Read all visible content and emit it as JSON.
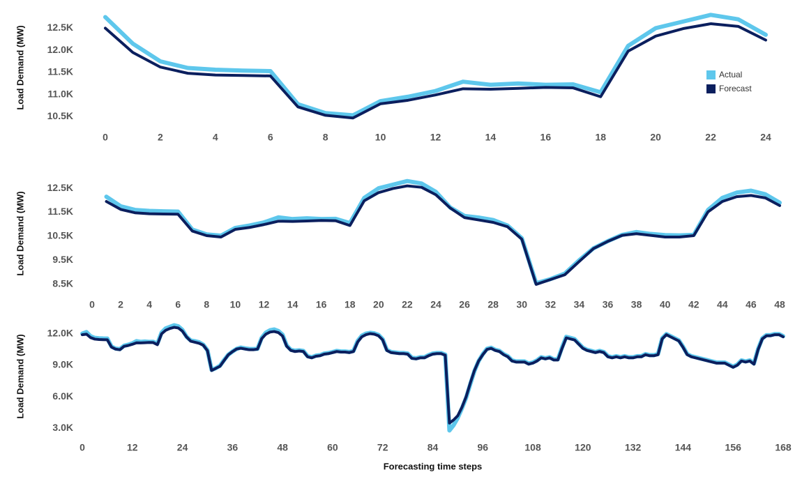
{
  "chart_data": [
    {
      "type": "line",
      "ylabel": "Load Demand (MW)",
      "legend": "right",
      "x": [
        0,
        1,
        2,
        3,
        4,
        5,
        6,
        7,
        8,
        9,
        10,
        11,
        12,
        13,
        14,
        15,
        16,
        17,
        18,
        19,
        20,
        21,
        22,
        23,
        24
      ],
      "series": [
        {
          "name": "Actual",
          "color": "#5ec7ec",
          "values": [
            12750,
            12150,
            11750,
            11600,
            11560,
            11540,
            11530,
            10780,
            10580,
            10530,
            10850,
            10950,
            11080,
            11290,
            11220,
            11250,
            11220,
            11230,
            11050,
            12100,
            12500,
            12650,
            12800,
            12700,
            12350
          ]
        },
        {
          "name": "Forecast",
          "color": "#0b1f5e",
          "values": [
            12500,
            11950,
            11620,
            11480,
            11440,
            11430,
            11420,
            10720,
            10530,
            10470,
            10790,
            10870,
            10990,
            11130,
            11120,
            11140,
            11160,
            11150,
            10950,
            11980,
            12320,
            12490,
            12600,
            12540,
            12230
          ]
        }
      ],
      "xlim": [
        0,
        24
      ],
      "xticks": [
        0,
        2,
        4,
        6,
        8,
        10,
        12,
        14,
        16,
        18,
        20,
        22,
        24
      ],
      "ylim": [
        10300,
        12900
      ],
      "yticks": [
        {
          "value": 12500,
          "label": "12.5K"
        },
        {
          "value": 12000,
          "label": "12.0K"
        },
        {
          "value": 11500,
          "label": "11.5K"
        },
        {
          "value": 11000,
          "label": "11.0K"
        },
        {
          "value": 10500,
          "label": "10.5K"
        }
      ]
    },
    {
      "type": "line",
      "ylabel": "Load Demand (MW)",
      "x": [
        1,
        2,
        3,
        4,
        5,
        6,
        7,
        8,
        9,
        10,
        11,
        12,
        13,
        14,
        15,
        16,
        17,
        18,
        19,
        20,
        21,
        22,
        23,
        24,
        25,
        26,
        27,
        28,
        29,
        30,
        31,
        32,
        33,
        34,
        35,
        36,
        37,
        38,
        39,
        40,
        41,
        42,
        43,
        44,
        45,
        46,
        47,
        48
      ],
      "series": [
        {
          "name": "Actual",
          "color": "#5ec7ec",
          "values": [
            12150,
            11750,
            11600,
            11560,
            11540,
            11530,
            10780,
            10580,
            10530,
            10850,
            10950,
            11080,
            11290,
            11220,
            11250,
            11220,
            11230,
            11050,
            12100,
            12500,
            12650,
            12800,
            12700,
            12350,
            11700,
            11350,
            11280,
            11180,
            10950,
            10420,
            8550,
            8720,
            8950,
            9500,
            10000,
            10300,
            10560,
            10680,
            10600,
            10550,
            10540,
            10560,
            11600,
            12100,
            12320,
            12400,
            12250,
            11900
          ]
        },
        {
          "name": "Forecast",
          "color": "#0b1f5e",
          "values": [
            11950,
            11620,
            11480,
            11440,
            11430,
            11420,
            10720,
            10530,
            10470,
            10790,
            10870,
            10990,
            11130,
            11120,
            11140,
            11160,
            11150,
            10950,
            11980,
            12320,
            12490,
            12600,
            12540,
            12230,
            11680,
            11280,
            11180,
            11080,
            10900,
            10380,
            8500,
            8700,
            8900,
            9450,
            9990,
            10290,
            10540,
            10610,
            10540,
            10470,
            10470,
            10530,
            11520,
            11950,
            12150,
            12200,
            12100,
            11780
          ]
        }
      ],
      "xlim": [
        0,
        48
      ],
      "xticks": [
        0,
        2,
        4,
        6,
        8,
        10,
        12,
        14,
        16,
        18,
        20,
        22,
        24,
        26,
        28,
        30,
        32,
        34,
        36,
        38,
        40,
        42,
        44,
        46,
        48
      ],
      "ylim": [
        8150,
        12850
      ],
      "yticks": [
        {
          "value": 12500,
          "label": "12.5K"
        },
        {
          "value": 11500,
          "label": "11.5K"
        },
        {
          "value": 10500,
          "label": "10.5K"
        },
        {
          "value": 9500,
          "label": "9.5K"
        },
        {
          "value": 8500,
          "label": "8.5K"
        }
      ]
    },
    {
      "type": "line",
      "ylabel": "Load Demand (MW)",
      "xlabel": "Forecasting time steps",
      "x": [
        0,
        1,
        2,
        3,
        4,
        5,
        6,
        7,
        8,
        9,
        10,
        11,
        12,
        13,
        14,
        15,
        16,
        17,
        18,
        19,
        20,
        21,
        22,
        23,
        24,
        25,
        26,
        27,
        28,
        29,
        30,
        31,
        32,
        33,
        34,
        35,
        36,
        37,
        38,
        39,
        40,
        41,
        42,
        43,
        44,
        45,
        46,
        47,
        48,
        49,
        50,
        51,
        52,
        53,
        54,
        55,
        56,
        57,
        58,
        59,
        60,
        61,
        62,
        63,
        64,
        65,
        66,
        67,
        68,
        69,
        70,
        71,
        72,
        73,
        74,
        75,
        76,
        77,
        78,
        79,
        80,
        81,
        82,
        83,
        84,
        85,
        86,
        87,
        88,
        89,
        90,
        91,
        92,
        93,
        94,
        95,
        96,
        97,
        98,
        99,
        100,
        101,
        102,
        103,
        104,
        105,
        106,
        107,
        108,
        109,
        110,
        111,
        112,
        113,
        114,
        115,
        116,
        117,
        118,
        119,
        120,
        121,
        122,
        123,
        124,
        125,
        126,
        127,
        128,
        129,
        130,
        131,
        132,
        133,
        134,
        135,
        136,
        137,
        138,
        139,
        140,
        141,
        142,
        143,
        144,
        145,
        146,
        147,
        148,
        149,
        150,
        151,
        152,
        153,
        154,
        155,
        156,
        157,
        158,
        159,
        160,
        161,
        162,
        163,
        164,
        165,
        166,
        167,
        168
      ],
      "series": [
        {
          "name": "Actual",
          "color": "#5ec7ec",
          "values": [
            12000,
            12150,
            11750,
            11600,
            11560,
            11540,
            11530,
            10780,
            10580,
            10530,
            10850,
            10950,
            11080,
            11290,
            11220,
            11250,
            11220,
            11230,
            11050,
            12100,
            12500,
            12650,
            12800,
            12700,
            12350,
            11700,
            11350,
            11280,
            11180,
            10950,
            10420,
            8550,
            8720,
            8950,
            9500,
            10000,
            10300,
            10560,
            10680,
            10600,
            10550,
            10540,
            10560,
            11600,
            12100,
            12320,
            12400,
            12250,
            11900,
            10870,
            10460,
            10380,
            10420,
            10360,
            9860,
            9760,
            9910,
            9960,
            10110,
            10160,
            10260,
            10360,
            10310,
            10310,
            10260,
            10360,
            11300,
            11800,
            12000,
            12080,
            12030,
            11880,
            11480,
            10460,
            10260,
            10210,
            10160,
            10160,
            10110,
            9710,
            9660,
            9760,
            9760,
            9960,
            10110,
            10160,
            10160,
            10010,
            2800,
            3300,
            4000,
            4900,
            5900,
            7200,
            8450,
            9400,
            10050,
            10560,
            10660,
            10460,
            10360,
            10060,
            9860,
            9460,
            9360,
            9360,
            9360,
            9160,
            9260,
            9460,
            9760,
            9660,
            9760,
            9560,
            9560,
            10700,
            11700,
            11600,
            11480,
            11060,
            10660,
            10460,
            10360,
            10260,
            10360,
            10260,
            9860,
            9760,
            9860,
            9760,
            9860,
            9760,
            9760,
            9860,
            9860,
            10060,
            9960,
            9960,
            10060,
            11560,
            11960,
            11760,
            11560,
            11360,
            10760,
            10060,
            9860,
            9760,
            9660,
            9560,
            9460,
            9360,
            9260,
            9260,
            9260,
            9060,
            8860,
            9060,
            9460,
            9360,
            9460,
            9160,
            10560,
            11560,
            11860,
            11860,
            11960,
            11960,
            11760
          ]
        },
        {
          "name": "Forecast",
          "color": "#0b1f5e",
          "values": [
            11900,
            11950,
            11620,
            11480,
            11440,
            11430,
            11420,
            10720,
            10530,
            10470,
            10790,
            10870,
            10990,
            11130,
            11120,
            11140,
            11160,
            11150,
            10950,
            11980,
            12320,
            12490,
            12600,
            12540,
            12230,
            11680,
            11280,
            11180,
            11080,
            10900,
            10380,
            8500,
            8700,
            8900,
            9450,
            9990,
            10290,
            10540,
            10610,
            10540,
            10470,
            10470,
            10530,
            11520,
            11950,
            12150,
            12200,
            12100,
            11780,
            10800,
            10400,
            10300,
            10350,
            10300,
            9800,
            9700,
            9850,
            9900,
            10050,
            10100,
            10200,
            10300,
            10250,
            10250,
            10200,
            10300,
            11200,
            11700,
            11900,
            12000,
            11950,
            11800,
            11400,
            10400,
            10200,
            10150,
            10100,
            10100,
            10050,
            9650,
            9600,
            9700,
            9700,
            9900,
            10050,
            10100,
            10100,
            9950,
            3500,
            3800,
            4200,
            5000,
            6000,
            7300,
            8500,
            9400,
            10000,
            10500,
            10600,
            10400,
            10300,
            10000,
            9800,
            9400,
            9300,
            9300,
            9300,
            9100,
            9200,
            9400,
            9700,
            9600,
            9700,
            9500,
            9500,
            10600,
            11600,
            11500,
            11400,
            11000,
            10600,
            10400,
            10300,
            10200,
            10300,
            10200,
            9800,
            9700,
            9800,
            9700,
            9800,
            9700,
            9700,
            9800,
            9800,
            10000,
            9900,
            9900,
            10000,
            11500,
            11900,
            11700,
            11500,
            11300,
            10700,
            10000,
            9800,
            9700,
            9600,
            9500,
            9400,
            9300,
            9200,
            9200,
            9200,
            9000,
            8800,
            9000,
            9400,
            9300,
            9400,
            9100,
            10500,
            11500,
            11800,
            11800,
            11900,
            11900,
            11700
          ]
        }
      ],
      "xlim": [
        0,
        168
      ],
      "xticks": [
        0,
        12,
        24,
        36,
        48,
        60,
        72,
        84,
        96,
        108,
        120,
        132,
        144,
        156,
        168
      ],
      "ylim": [
        2300,
        12900
      ],
      "yticks": [
        {
          "value": 12000,
          "label": "12.0K"
        },
        {
          "value": 9000,
          "label": "9.0K"
        },
        {
          "value": 6000,
          "label": "6.0K"
        },
        {
          "value": 3000,
          "label": "3.0K"
        }
      ]
    }
  ]
}
